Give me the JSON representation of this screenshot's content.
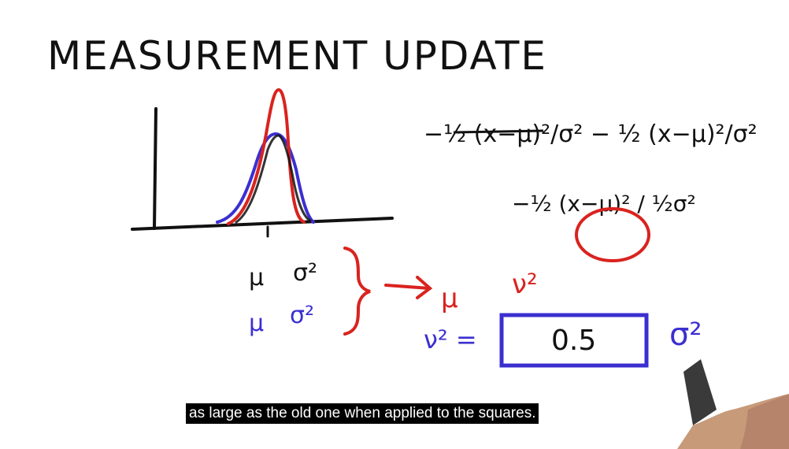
{
  "board": {
    "title": "MEASUREMENT UPDATE",
    "curves": [
      {
        "color": "#d9231f",
        "label_mu": "μ",
        "label_var": "σ²"
      },
      {
        "color": "#3b2fd0",
        "label_mu": "μ",
        "label_var": "σ²"
      }
    ],
    "result": {
      "mu": "μ",
      "var": "ν²"
    },
    "equations": {
      "exp_black": "−½ (x−μ)²/σ² − ½ (x−μ)²/σ²",
      "exp_combined": "−½ (x−μ)² / ½σ²"
    },
    "variance_line": {
      "lhs": "ν² =",
      "box_value": "0.5",
      "rhs": "σ²"
    }
  },
  "caption": {
    "text": "as large as the old one when applied to the squares."
  },
  "colors": {
    "ink": "#111111",
    "red": "#d9231f",
    "blue": "#3b2fd0",
    "caption_bg": "#000000",
    "caption_fg": "#ffffff"
  }
}
